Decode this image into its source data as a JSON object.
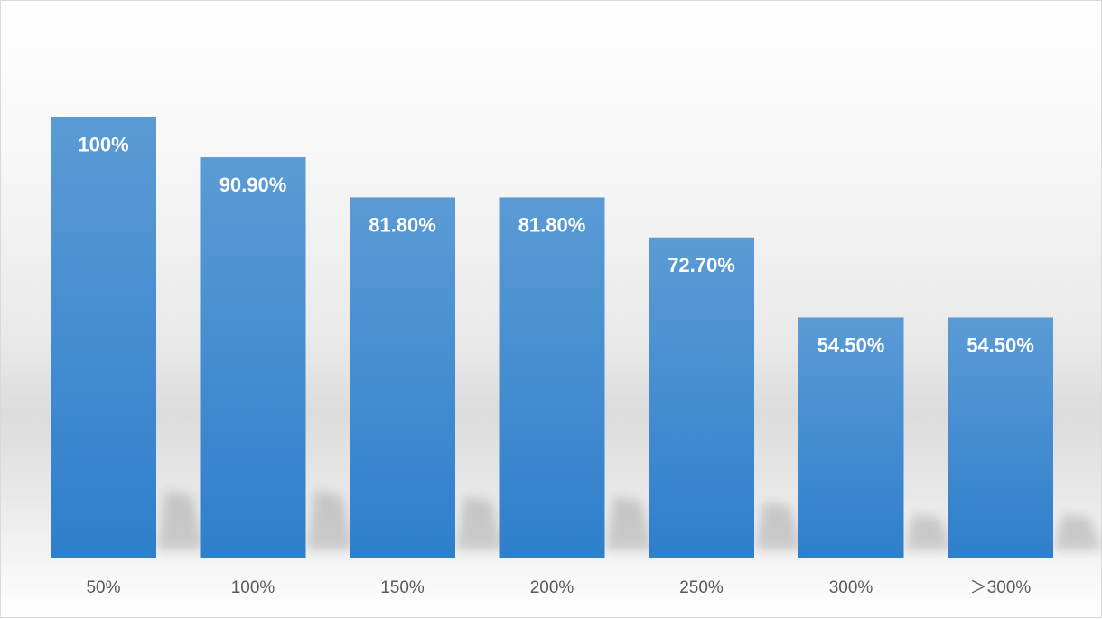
{
  "chart_data": {
    "type": "bar",
    "title": "",
    "xlabel": "",
    "ylabel": "",
    "categories": [
      "50%",
      "100%",
      "150%",
      "200%",
      "250%",
      "300%",
      "＞300%"
    ],
    "values": [
      100,
      90.9,
      81.8,
      81.8,
      72.7,
      54.5,
      54.5
    ],
    "data_labels": [
      "100%",
      "90.90%",
      "81.80%",
      "81.80%",
      "72.70%",
      "54.50%",
      "54.50%"
    ],
    "ylim": [
      0,
      110
    ],
    "grid": false,
    "legend": "none",
    "colors": {
      "bar_top": "#5b9bd5",
      "bar_bottom": "#2e7fcc",
      "label": "#ffffff",
      "tick": "#595959"
    }
  }
}
